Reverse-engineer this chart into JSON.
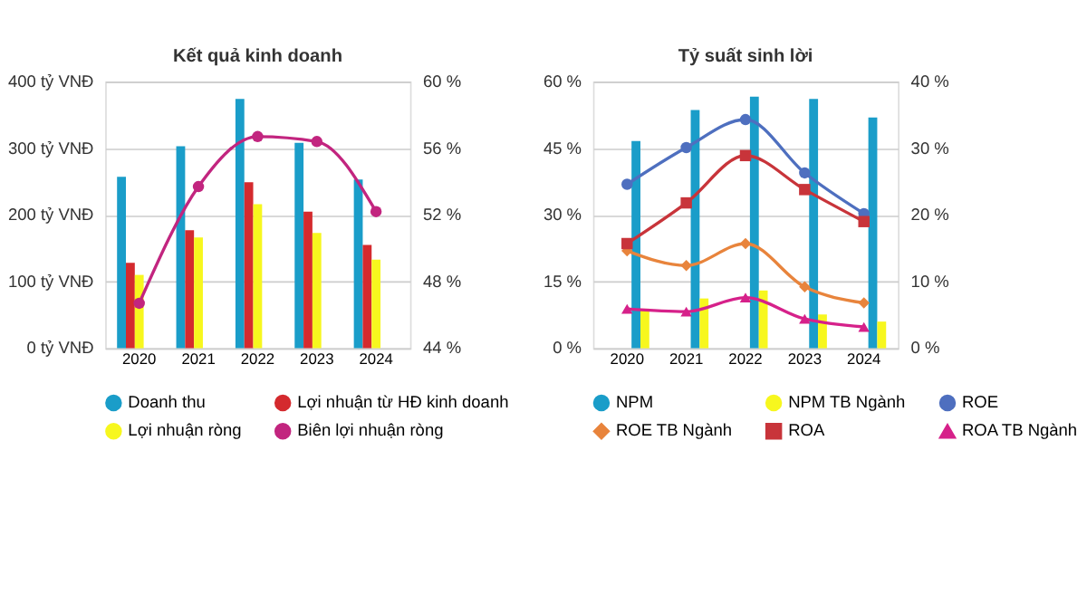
{
  "chart_data": [
    {
      "type": "bar",
      "title": "Kết quả kinh doanh",
      "categories": [
        "2020",
        "2021",
        "2022",
        "2023",
        "2024"
      ],
      "series": [
        {
          "name": "Doanh thu",
          "color": "#1a9dc9",
          "values": [
            257,
            303,
            374,
            308,
            253
          ]
        },
        {
          "name": "Lợi nhuận từ HĐ kinh doanh",
          "color": "#d42a2e",
          "values": [
            128,
            177,
            249,
            205,
            155
          ]
        },
        {
          "name": "Lợi nhuận ròng",
          "color": "#f7f71e",
          "values": [
            110,
            166,
            216,
            173,
            133
          ]
        },
        {
          "name": "Biên lợi nhuận ròng",
          "type": "line",
          "axis": "y2",
          "color": "#c2257f",
          "marker": "circle",
          "values": [
            46.7,
            53.7,
            56.7,
            56.4,
            52.2
          ]
        }
      ],
      "ylim": [
        0,
        400
      ],
      "yticks": [
        {
          "value": 0,
          "label": "0 tỷ VNĐ"
        },
        {
          "value": 100,
          "label": "100 tỷ VNĐ"
        },
        {
          "value": 200,
          "label": "200 tỷ VNĐ"
        },
        {
          "value": 300,
          "label": "300 tỷ VNĐ"
        },
        {
          "value": 400,
          "label": "400 tỷ VNĐ"
        }
      ],
      "y2lim": [
        44,
        60
      ],
      "y2ticks": [
        {
          "value": 44,
          "label": "44 %"
        },
        {
          "value": 48,
          "label": "48 %"
        },
        {
          "value": 52,
          "label": "52 %"
        },
        {
          "value": 56,
          "label": "56 %"
        },
        {
          "value": 60,
          "label": "60 %"
        }
      ],
      "grid": "y",
      "legend": "bottom"
    },
    {
      "type": "bar",
      "title": "Tỷ suất sinh lời",
      "categories": [
        "2020",
        "2021",
        "2022",
        "2023",
        "2024"
      ],
      "series": [
        {
          "name": "NPM",
          "color": "#1a9dc9",
          "values": [
            46.6,
            53.6,
            56.6,
            56.1,
            51.9
          ]
        },
        {
          "name": "NPM TB Ngành",
          "color": "#f7f71e",
          "values": [
            8.9,
            11.2,
            13.0,
            7.6,
            6.0
          ]
        },
        {
          "name": "ROE",
          "type": "line",
          "axis": "y2",
          "color": "#4e6fbf",
          "marker": "circle",
          "values": [
            24.6,
            30.1,
            34.3,
            26.3,
            20.2
          ]
        },
        {
          "name": "ROE TB Ngành",
          "type": "line",
          "axis": "y2",
          "color": "#e8843c",
          "marker": "diamond",
          "values": [
            14.6,
            12.4,
            15.7,
            9.2,
            6.8
          ]
        },
        {
          "name": "ROA",
          "type": "line",
          "axis": "y2",
          "color": "#c8343a",
          "marker": "square",
          "values": [
            15.7,
            21.8,
            28.9,
            23.8,
            19.0
          ]
        },
        {
          "name": "ROA TB Ngành",
          "type": "line",
          "axis": "y2",
          "color": "#d6218a",
          "marker": "triangle",
          "values": [
            5.9,
            5.5,
            7.6,
            4.4,
            3.2
          ]
        }
      ],
      "ylim": [
        0,
        60
      ],
      "yticks": [
        {
          "value": 0,
          "label": "0 %"
        },
        {
          "value": 15,
          "label": "15 %"
        },
        {
          "value": 30,
          "label": "30 %"
        },
        {
          "value": 45,
          "label": "45 %"
        },
        {
          "value": 60,
          "label": "60 %"
        }
      ],
      "y2lim": [
        0,
        40
      ],
      "y2ticks": [
        {
          "value": 0,
          "label": "0 %"
        },
        {
          "value": 10,
          "label": "10 %"
        },
        {
          "value": 20,
          "label": "20 %"
        },
        {
          "value": 30,
          "label": "30 %"
        },
        {
          "value": 40,
          "label": "40 %"
        }
      ],
      "grid": "y",
      "legend": "bottom"
    }
  ]
}
